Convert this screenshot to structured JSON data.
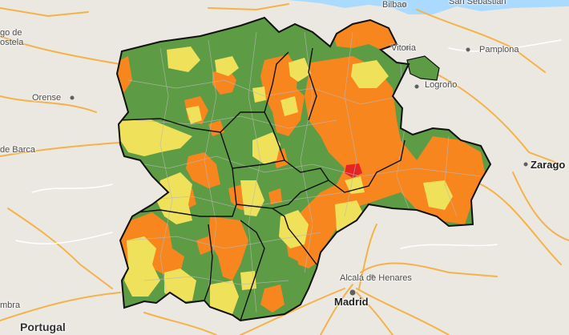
{
  "map": {
    "colors": {
      "land": "#ebe8e1",
      "sea": "#aadaff",
      "road_major": "#f4b24a",
      "road_minor": "#ffffff",
      "border": "#111111",
      "subregion_line": "#b9b9b9",
      "low": "#5d9b45",
      "medium": "#f0e15a",
      "high": "#f7861f",
      "very_high": "#e82323"
    },
    "labels": {
      "bilbao": "Bilbao",
      "san_sebastian": "San Sebastián",
      "santiago_part1": "go de",
      "santiago_part2": "ostela",
      "vitoria": "Vitoria",
      "pamplona": "Pamplona",
      "orense": "Orense",
      "logrono": "Logroño",
      "barca": "de Barca",
      "zaragoza": "Zarago",
      "alcala": "Alcalá de Henares",
      "madrid": "Madrid",
      "coimbra": "mbra",
      "portugal": "Portugal"
    }
  }
}
